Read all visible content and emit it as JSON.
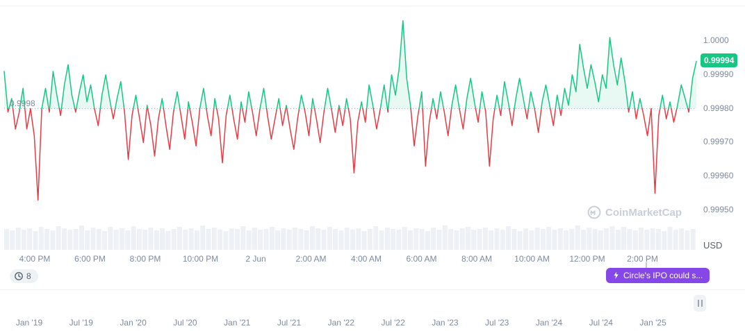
{
  "colors": {
    "green": "#16c784",
    "red": "#ea3943",
    "purple": "#8647e8",
    "axis_gray": "#7d8aa0",
    "volume_gray": "#edf0f4"
  },
  "chart": {
    "baseline_label": "0.9998",
    "current_price_label": "0.99994",
    "unit_label": "USD",
    "watermark": "CoinMarketCap"
  },
  "events": {
    "count": "8",
    "event_label": "Circle's IPO could s..."
  },
  "timeline": {
    "dates": [
      "Jan '19",
      "Jul '19",
      "Jan '20",
      "Jul '20",
      "Jan '21",
      "Jul '21",
      "Jan '22",
      "Jul '22",
      "Jan '23",
      "Jul '23",
      "Jan '24",
      "Jul '24",
      "Jan '25"
    ]
  },
  "chart_data": {
    "type": "line",
    "x_ticks": [
      "4:00 PM",
      "6:00 PM",
      "8:00 PM",
      "10:00 PM",
      "2 Jun",
      "2:00 AM",
      "4:00 AM",
      "6:00 AM",
      "8:00 AM",
      "10:00 AM",
      "12:00 PM",
      "2:00 PM"
    ],
    "y_ticks": [
      {
        "label": "1.0000",
        "value": 1.0
      },
      {
        "label": "0.99990",
        "value": 0.9999
      },
      {
        "label": "0.99980",
        "value": 0.9998
      },
      {
        "label": "0.99970",
        "value": 0.9997
      },
      {
        "label": "0.99960",
        "value": 0.9996
      },
      {
        "label": "0.99950",
        "value": 0.9995
      }
    ],
    "ylim": [
      0.99944,
      1.00012
    ],
    "baseline": 0.9998,
    "current_price": 0.99994,
    "unit": "USD",
    "legend": "none",
    "grid": "baseline-dotted-only",
    "color_up": "#16c784",
    "color_down": "#ea3943",
    "prices": [
      0.99991,
      0.99979,
      0.99983,
      0.99974,
      0.99979,
      0.99986,
      0.99974,
      0.9998,
      0.99972,
      0.99953,
      0.9998,
      0.99986,
      0.99979,
      0.99991,
      0.99984,
      0.99978,
      0.99987,
      0.99993,
      0.99984,
      0.99979,
      0.99985,
      0.9999,
      0.99982,
      0.99987,
      0.9998,
      0.99975,
      0.99984,
      0.9999,
      0.99983,
      0.99977,
      0.99983,
      0.99988,
      0.99979,
      0.99965,
      0.99978,
      0.99984,
      0.99977,
      0.9997,
      0.99981,
      0.99975,
      0.99966,
      0.99977,
      0.99983,
      0.99975,
      0.99968,
      0.99979,
      0.99985,
      0.99978,
      0.99971,
      0.99982,
      0.99976,
      0.99969,
      0.9998,
      0.99986,
      0.99978,
      0.99972,
      0.99983,
      0.99977,
      0.99964,
      0.99978,
      0.99984,
      0.99977,
      0.99971,
      0.99982,
      0.99976,
      0.99985,
      0.99979,
      0.99972,
      0.9998,
      0.99986,
      0.99978,
      0.99971,
      0.99977,
      0.99983,
      0.99975,
      0.99981,
      0.99974,
      0.99968,
      0.99977,
      0.99984,
      0.99979,
      0.99972,
      0.99983,
      0.99977,
      0.9997,
      0.99979,
      0.99986,
      0.9998,
      0.99973,
      0.99981,
      0.99975,
      0.99983,
      0.99977,
      0.99961,
      0.99976,
      0.99982,
      0.99976,
      0.99987,
      0.99981,
      0.99974,
      0.9998,
      0.99987,
      0.99979,
      0.9999,
      0.99984,
      0.99992,
      1.00006,
      0.99989,
      0.99981,
      0.99969,
      0.99978,
      0.99985,
      0.99963,
      0.99976,
      0.99983,
      0.99977,
      0.99985,
      0.99979,
      0.99972,
      0.99981,
      0.99987,
      0.9998,
      0.99974,
      0.99983,
      0.99989,
      0.99982,
      0.99976,
      0.99985,
      0.99979,
      0.99963,
      0.99977,
      0.99984,
      0.99978,
      0.99988,
      0.99982,
      0.99975,
      0.99983,
      0.99989,
      0.99983,
      0.99977,
      0.99985,
      0.9998,
      0.99973,
      0.99982,
      0.99987,
      0.99981,
      0.99975,
      0.99984,
      0.99978,
      0.99986,
      0.99981,
      0.9999,
      0.99985,
      0.99999,
      0.99992,
      0.99986,
      0.99993,
      0.99988,
      0.99982,
      0.9999,
      0.99986,
      1.00001,
      0.99993,
      0.99987,
      0.99995,
      0.99988,
      0.99979,
      0.99985,
      0.99977,
      0.99983,
      0.99978,
      0.99972,
      0.9998,
      0.99955,
      0.99978,
      0.99984,
      0.99977,
      0.99982,
      0.99976,
      0.99981,
      0.99987,
      0.99983,
      0.99979,
      0.99989,
      0.99994
    ],
    "volume": [
      30,
      28,
      32,
      29,
      31,
      27,
      33,
      30,
      28,
      34,
      31,
      29,
      30,
      35,
      28,
      32,
      30,
      27,
      33,
      29,
      31,
      28,
      34,
      30,
      29,
      32,
      28,
      31,
      27,
      30,
      33,
      29,
      31,
      28,
      35,
      30,
      32,
      29,
      27,
      31,
      30,
      34,
      28,
      32,
      29,
      30,
      33,
      28,
      31,
      29,
      32,
      30,
      28,
      34,
      31,
      29,
      33,
      30,
      28,
      32,
      29,
      31,
      27,
      30,
      34,
      28,
      32,
      30,
      29,
      33,
      28,
      31,
      30,
      27,
      32,
      29,
      35,
      30,
      28,
      31,
      33,
      29,
      30,
      32,
      28,
      31,
      29,
      34,
      30,
      27,
      31,
      28,
      32,
      30,
      33,
      29,
      31,
      28,
      30,
      35,
      29,
      32,
      30,
      28,
      31,
      34,
      29,
      33,
      30,
      28,
      32,
      29,
      31,
      30,
      27,
      33,
      29,
      31,
      28,
      30
    ]
  }
}
